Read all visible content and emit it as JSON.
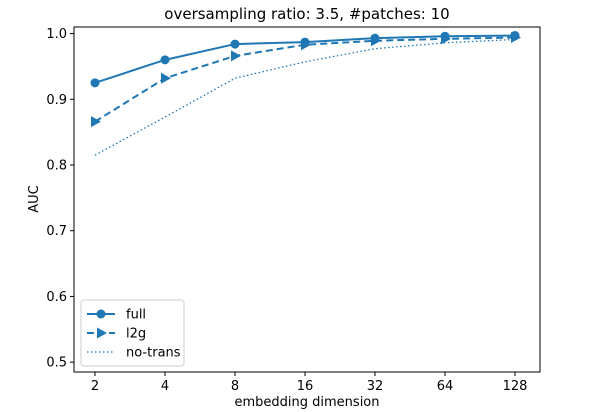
{
  "chart_data": {
    "type": "line",
    "title": "oversampling ratio: 3.5, #patches: 10",
    "xlabel": "embedding dimension",
    "ylabel": "AUC",
    "x_scale": "log2",
    "categories": [
      "2",
      "4",
      "8",
      "16",
      "32",
      "64",
      "128"
    ],
    "x": [
      2,
      4,
      8,
      16,
      32,
      64,
      128
    ],
    "ylim": [
      0.485,
      1.01
    ],
    "yticks": [
      0.5,
      0.6,
      0.7,
      0.8,
      0.9,
      1.0
    ],
    "ytick_labels": [
      "0.5",
      "0.6",
      "0.7",
      "0.8",
      "0.9",
      "1.0"
    ],
    "grid": false,
    "legend_position": "lower-left",
    "color": "#1f77b4",
    "series": [
      {
        "name": "full",
        "values": [
          0.925,
          0.96,
          0.984,
          0.987,
          0.993,
          0.996,
          0.997
        ],
        "linestyle": "solid",
        "marker": "circle"
      },
      {
        "name": "l2g",
        "values": [
          0.866,
          0.932,
          0.966,
          0.983,
          0.989,
          0.992,
          0.994
        ],
        "linestyle": "dashed",
        "marker": "triangle-right"
      },
      {
        "name": "no-trans",
        "values": [
          0.815,
          0.873,
          0.932,
          0.957,
          0.977,
          0.986,
          0.991
        ],
        "linestyle": "dotted",
        "marker": "none"
      }
    ]
  }
}
